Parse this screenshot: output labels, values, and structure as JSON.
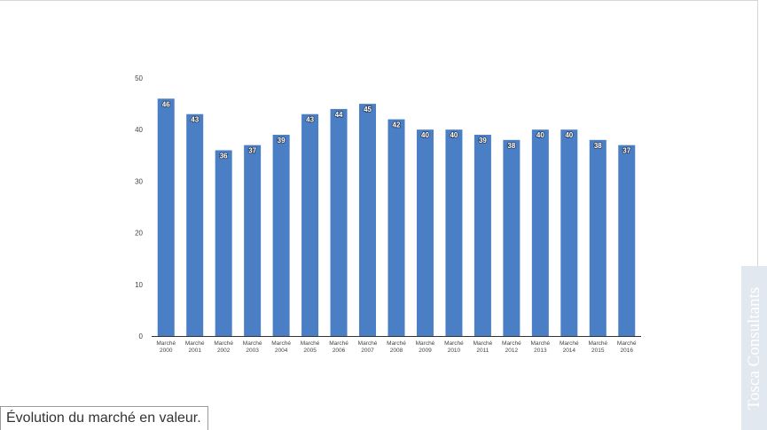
{
  "caption": "Évolution du marché en valeur.",
  "watermark": "Tosca Consultants",
  "colors": {
    "bar": "#4a7ec5",
    "axis": "#333333",
    "label_text": "#444444",
    "watermark_bg": "#e2e8f0"
  },
  "chart_data": {
    "type": "bar",
    "title": "",
    "xlabel": "",
    "ylabel": "",
    "ylim": [
      0,
      50
    ],
    "yticks": [
      0,
      10,
      20,
      30,
      40,
      50
    ],
    "grid": false,
    "categories": [
      [
        "Marché",
        "2000"
      ],
      [
        "Marché",
        "2001"
      ],
      [
        "Marché",
        "2002"
      ],
      [
        "Marché",
        "2003"
      ],
      [
        "Marché",
        "2004"
      ],
      [
        "Marché",
        "2005"
      ],
      [
        "Marché",
        "2006"
      ],
      [
        "Marché",
        "2007"
      ],
      [
        "Marché",
        "2008"
      ],
      [
        "Marché",
        "2009"
      ],
      [
        "Marché",
        "2010"
      ],
      [
        "Marché",
        "2011"
      ],
      [
        "Marché",
        "2012"
      ],
      [
        "Marché",
        "2013"
      ],
      [
        "Marché",
        "2014"
      ],
      [
        "Marché",
        "2015"
      ],
      [
        "Marché",
        "2016"
      ]
    ],
    "values": [
      46,
      43,
      36,
      37,
      39,
      43,
      44,
      45,
      42,
      40,
      40,
      39,
      38,
      40,
      40,
      38,
      37
    ]
  }
}
